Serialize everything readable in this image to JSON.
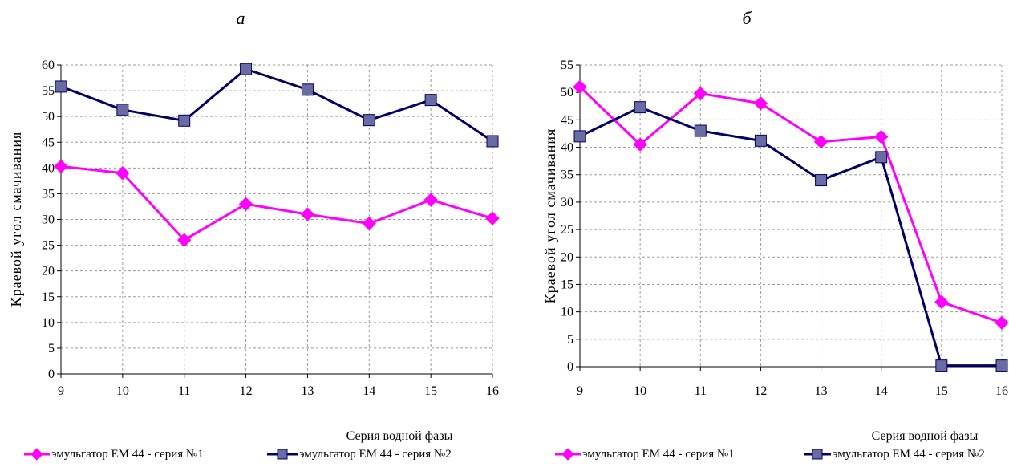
{
  "colors": {
    "series1": "#ff00ff",
    "series2": "#000066",
    "series2_marker": "#6b6ba3",
    "grid": "#9a9a9a"
  },
  "chart_data": [
    {
      "type": "line",
      "title": "а",
      "xlabel": "Серия водной фазы",
      "ylabel": "Краевой угол смачивания",
      "x": [
        9,
        10,
        11,
        12,
        13,
        14,
        15,
        16
      ],
      "x_tick_labels": [
        "9",
        "10",
        "11",
        "12",
        "13",
        "14",
        "15",
        "16"
      ],
      "ylim": [
        0,
        60
      ],
      "y_ticks": [
        0,
        5,
        10,
        15,
        20,
        25,
        30,
        35,
        40,
        45,
        50,
        55,
        60
      ],
      "grid": true,
      "legend": "bottom",
      "series": [
        {
          "name": "эмульгатор ЕМ 44 - серия №1",
          "marker": "diamond",
          "values": [
            40.3,
            39,
            26,
            33,
            31,
            29.2,
            33.8,
            30.2
          ]
        },
        {
          "name": "эмульгатор ЕМ 44 - серия №2",
          "marker": "square",
          "values": [
            55.8,
            51.3,
            49.2,
            59.2,
            55.2,
            49.3,
            53.2,
            45.2
          ]
        }
      ]
    },
    {
      "type": "line",
      "title": "б",
      "xlabel": "Серия водной фазы",
      "ylabel": "Краевой угол смачивания",
      "x": [
        9,
        10,
        11,
        12,
        13,
        14,
        15,
        16
      ],
      "x_tick_labels": [
        "9",
        "10",
        "11",
        "12",
        "13",
        "14",
        "15",
        "16"
      ],
      "ylim": [
        0,
        55
      ],
      "y_ticks": [
        0,
        5,
        10,
        15,
        20,
        25,
        30,
        35,
        40,
        45,
        50,
        55
      ],
      "grid": true,
      "legend": "bottom",
      "series": [
        {
          "name": "эмульгатор ЕМ 44 - серия №1",
          "marker": "diamond",
          "values": [
            51,
            40.5,
            49.8,
            48,
            41,
            41.9,
            11.8,
            8
          ]
        },
        {
          "name": "эмульгатор ЕМ 44 - серия №2",
          "marker": "square",
          "values": [
            42,
            47.3,
            43,
            41.2,
            34,
            38.2,
            0.2,
            0.2
          ]
        }
      ]
    }
  ]
}
